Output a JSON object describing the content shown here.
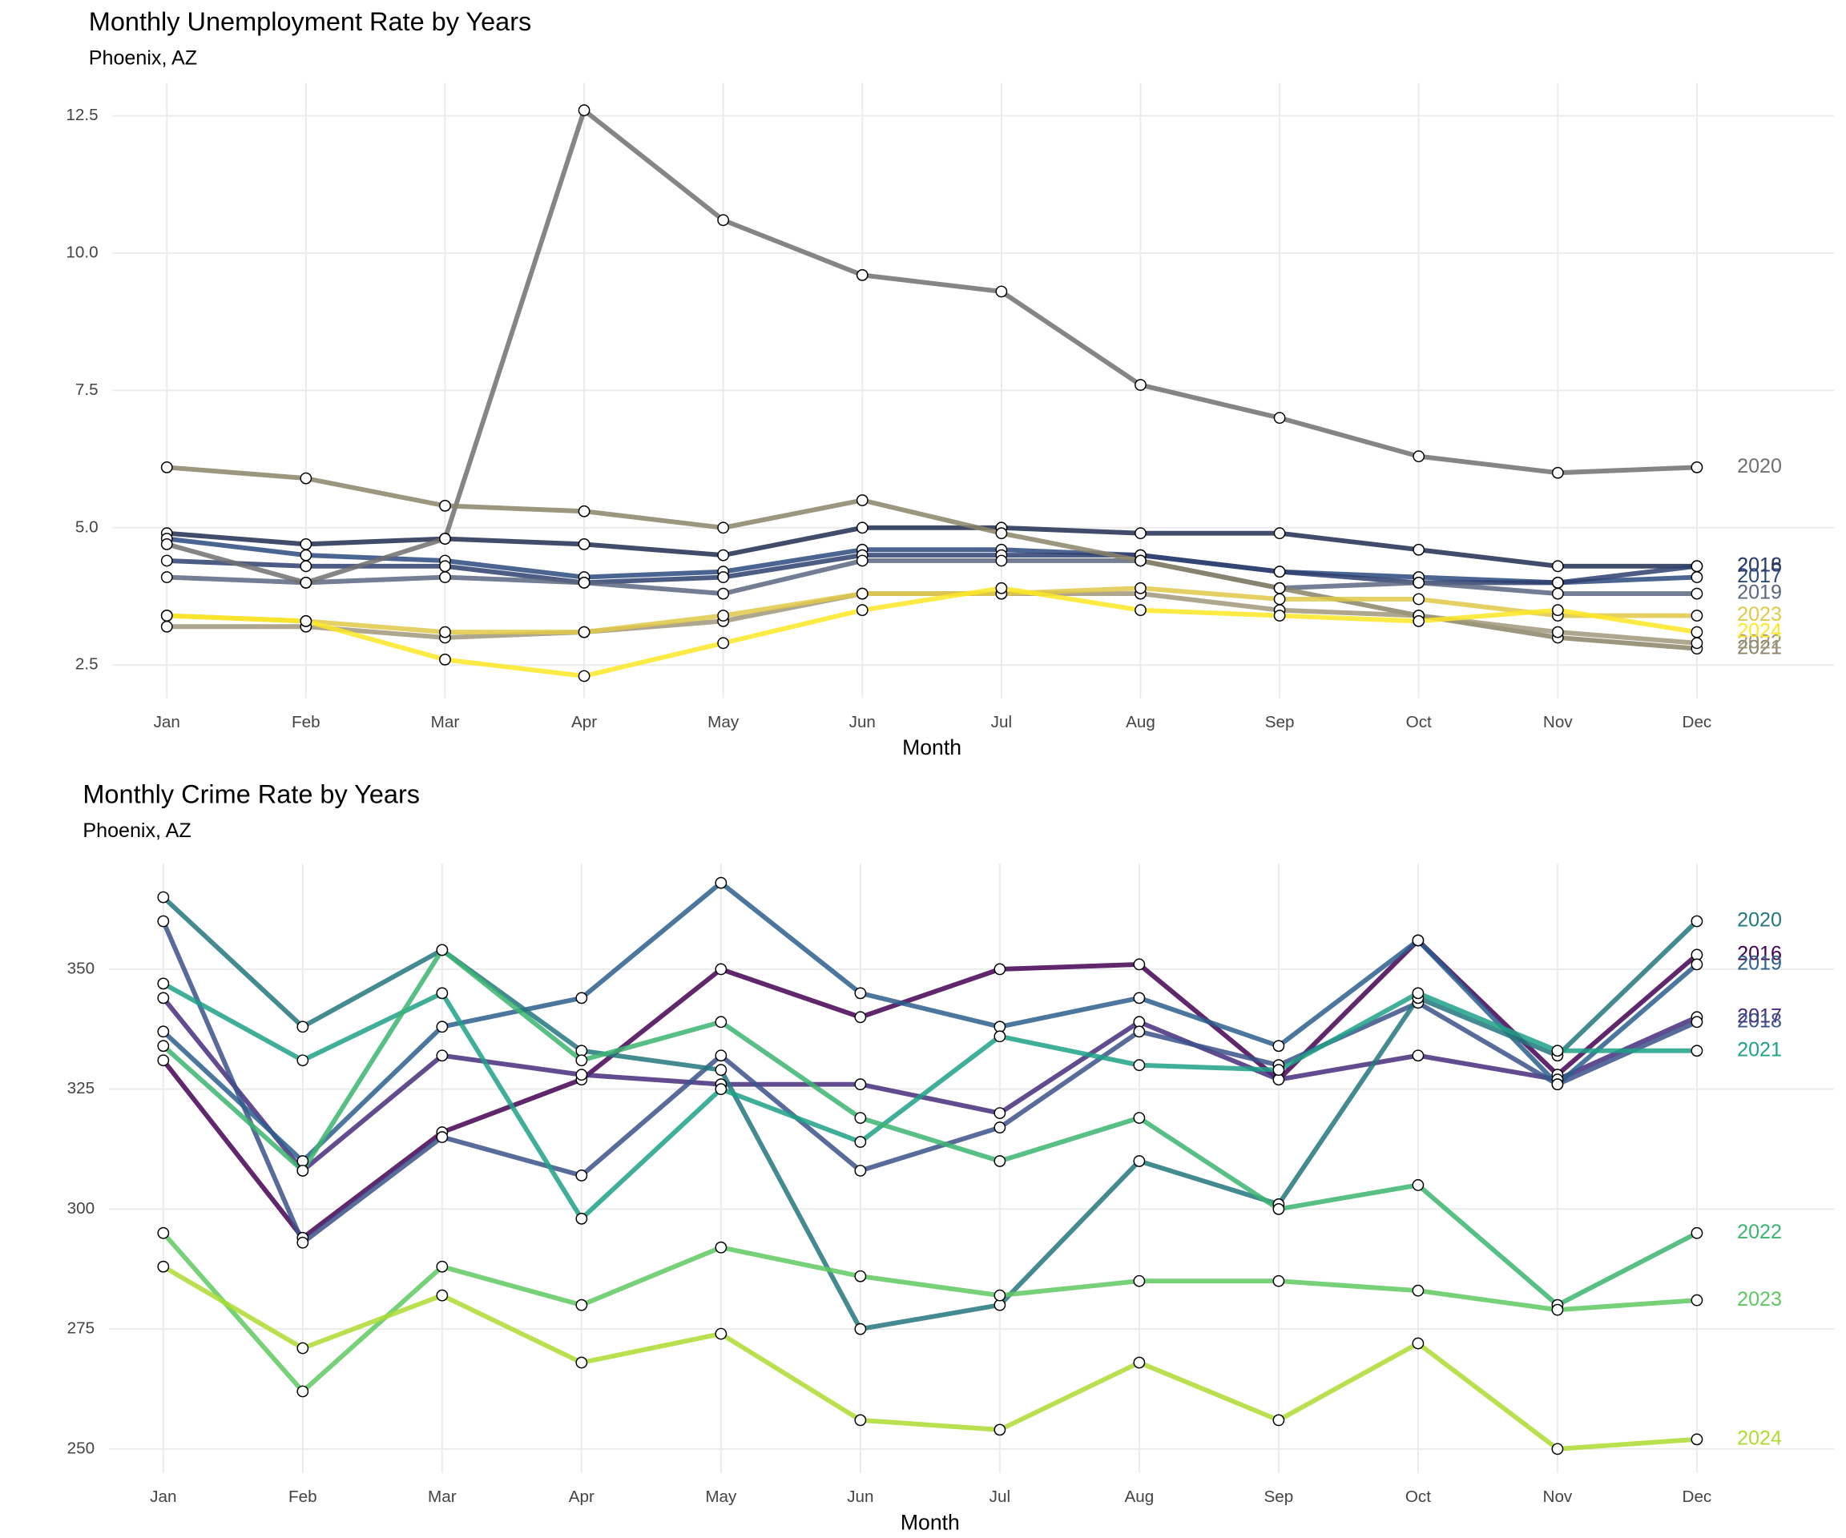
{
  "chart_data": [
    {
      "type": "line",
      "title": "Monthly Unemployment Rate by Years",
      "subtitle": "Phoenix, AZ",
      "x_label": "Month",
      "categories": [
        "Jan",
        "Feb",
        "Mar",
        "Apr",
        "May",
        "Jun",
        "Jul",
        "Aug",
        "Sep",
        "Oct",
        "Nov",
        "Dec"
      ],
      "ylim": [
        1.9,
        13.1
      ],
      "yticks": [
        {
          "value": 2.5,
          "label": "2.5"
        },
        {
          "value": 5,
          "label": "5.0"
        },
        {
          "value": 7.5,
          "label": "7.5"
        },
        {
          "value": 10,
          "label": "10.0"
        },
        {
          "value": 12.5,
          "label": "12.5"
        }
      ],
      "grid": true,
      "series": [
        {
          "name": "2016",
          "color": "#1f2d4f",
          "values": [
            4.9,
            4.7,
            4.8,
            4.7,
            4.5,
            5.0,
            5.0,
            4.9,
            4.9,
            4.6,
            4.3,
            4.3
          ]
        },
        {
          "name": "2017",
          "color": "#2b4a80",
          "values": [
            4.8,
            4.5,
            4.4,
            4.1,
            4.2,
            4.6,
            4.6,
            4.5,
            4.2,
            4.1,
            4.0,
            4.1
          ]
        },
        {
          "name": "2018",
          "color": "#2e3f6e",
          "values": [
            4.4,
            4.3,
            4.3,
            4.0,
            4.1,
            4.5,
            4.5,
            4.5,
            4.2,
            4.0,
            4.0,
            4.3
          ]
        },
        {
          "name": "2019",
          "color": "#5a6680",
          "values": [
            4.1,
            4.0,
            4.1,
            4.0,
            3.8,
            4.4,
            4.4,
            4.4,
            3.9,
            4.0,
            3.8,
            3.8
          ]
        },
        {
          "name": "2020",
          "color": "#707070",
          "values": [
            4.7,
            4.0,
            4.8,
            12.6,
            10.6,
            9.6,
            9.3,
            7.6,
            7.0,
            6.3,
            6.0,
            6.1
          ]
        },
        {
          "name": "2021",
          "color": "#8c8468",
          "values": [
            6.1,
            5.9,
            5.4,
            5.3,
            5.0,
            5.5,
            4.9,
            4.4,
            3.9,
            3.4,
            3.0,
            2.8
          ]
        },
        {
          "name": "2022",
          "color": "#a0977a",
          "values": [
            3.2,
            3.2,
            3.0,
            3.1,
            3.3,
            3.8,
            3.8,
            3.8,
            3.5,
            3.4,
            3.1,
            2.9
          ]
        },
        {
          "name": "2023",
          "color": "#e0c848",
          "values": [
            3.4,
            3.3,
            3.1,
            3.1,
            3.4,
            3.8,
            3.8,
            3.9,
            3.7,
            3.7,
            3.4,
            3.4
          ]
        },
        {
          "name": "2024",
          "color": "#fde725",
          "values": [
            3.4,
            3.3,
            2.6,
            2.3,
            2.9,
            3.5,
            3.9,
            3.5,
            3.4,
            3.3,
            3.5,
            3.1
          ]
        }
      ]
    },
    {
      "type": "line",
      "title": "Monthly Crime Rate by Years",
      "subtitle": "Phoenix, AZ",
      "x_label": "Month",
      "categories": [
        "Jan",
        "Feb",
        "Mar",
        "Apr",
        "May",
        "Jun",
        "Jul",
        "Aug",
        "Sep",
        "Oct",
        "Nov",
        "Dec"
      ],
      "ylim": [
        245,
        372
      ],
      "yticks": [
        250,
        275,
        300,
        325,
        350
      ],
      "grid": true,
      "series": [
        {
          "name": "2016",
          "color": "#440154",
          "values": [
            331,
            294,
            316,
            327,
            350,
            340,
            350,
            351,
            327,
            356,
            328,
            353
          ]
        },
        {
          "name": "2017",
          "color": "#472d7b",
          "values": [
            344,
            308,
            332,
            328,
            326,
            326,
            320,
            339,
            327,
            332,
            327,
            340
          ]
        },
        {
          "name": "2018",
          "color": "#3b528b",
          "values": [
            360,
            293,
            315,
            307,
            332,
            308,
            317,
            337,
            330,
            343,
            326,
            339
          ]
        },
        {
          "name": "2019",
          "color": "#2c5f8e",
          "values": [
            337,
            310,
            338,
            344,
            368,
            345,
            338,
            344,
            334,
            356,
            326,
            351
          ]
        },
        {
          "name": "2020",
          "color": "#23777e",
          "values": [
            365,
            338,
            354,
            333,
            329,
            275,
            280,
            310,
            301,
            344,
            332,
            360
          ]
        },
        {
          "name": "2021",
          "color": "#1fa187",
          "values": [
            347,
            331,
            345,
            298,
            325,
            314,
            336,
            330,
            329,
            345,
            333,
            333
          ]
        },
        {
          "name": "2022",
          "color": "#3bb56f",
          "values": [
            334,
            308,
            354,
            331,
            339,
            319,
            310,
            319,
            300,
            305,
            280,
            295
          ]
        },
        {
          "name": "2023",
          "color": "#5ec962",
          "values": [
            295,
            262,
            288,
            280,
            292,
            286,
            282,
            285,
            285,
            283,
            279,
            281
          ]
        },
        {
          "name": "2024",
          "color": "#addc30",
          "values": [
            288,
            271,
            282,
            268,
            274,
            256,
            254,
            268,
            256,
            272,
            250,
            252
          ]
        }
      ]
    }
  ]
}
